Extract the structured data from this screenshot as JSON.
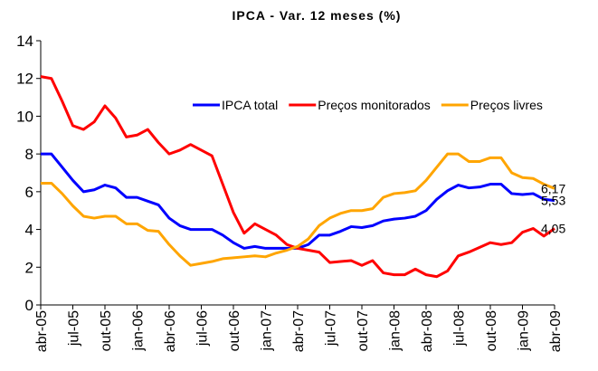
{
  "chart_data": {
    "type": "line",
    "title": "IPCA - Var. 12 meses (%)",
    "categories": [
      "abr-05",
      null,
      null,
      "jul-05",
      null,
      null,
      "out-05",
      null,
      null,
      "jan-06",
      null,
      null,
      "abr-06",
      null,
      null,
      "jul-06",
      null,
      null,
      "out-06",
      null,
      null,
      "jan-07",
      null,
      null,
      "abr-07",
      null,
      null,
      "jul-07",
      null,
      null,
      "out-07",
      null,
      null,
      "jan-08",
      null,
      null,
      "abr-08",
      null,
      null,
      "jul-08",
      null,
      null,
      "out-08",
      null,
      null,
      "jan-09",
      null,
      null,
      "abr-09"
    ],
    "series": [
      {
        "name": "IPCA total",
        "color": "#0000ff",
        "values": [
          8.0,
          8.0,
          7.3,
          6.6,
          6.0,
          6.1,
          6.35,
          6.2,
          5.7,
          5.7,
          5.5,
          5.3,
          4.6,
          4.2,
          4.0,
          4.0,
          4.0,
          3.7,
          3.3,
          3.0,
          3.1,
          3.0,
          3.0,
          3.0,
          3.0,
          3.2,
          3.7,
          3.7,
          3.9,
          4.15,
          4.1,
          4.2,
          4.45,
          4.55,
          4.6,
          4.7,
          5.0,
          5.6,
          6.05,
          6.35,
          6.2,
          6.25,
          6.4,
          6.4,
          5.9,
          5.85,
          5.9,
          5.6,
          5.53
        ],
        "value_labels": [
          null,
          null,
          null,
          null,
          null,
          null,
          null,
          null,
          null,
          null,
          null,
          null,
          null,
          null,
          null,
          null,
          null,
          null,
          null,
          null,
          null,
          null,
          null,
          null,
          null,
          null,
          null,
          null,
          null,
          null,
          null,
          null,
          null,
          null,
          null,
          null,
          null,
          null,
          null,
          null,
          null,
          null,
          null,
          null,
          null,
          null,
          null,
          null,
          "5,53"
        ]
      },
      {
        "name": "Preços monitorados",
        "color": "#ff0000",
        "values": [
          12.1,
          12.0,
          10.8,
          9.5,
          9.3,
          9.7,
          10.55,
          9.9,
          8.9,
          9.0,
          9.3,
          8.6,
          8.0,
          8.2,
          8.5,
          8.2,
          7.9,
          6.4,
          4.9,
          3.8,
          4.3,
          4.0,
          3.7,
          3.2,
          3.0,
          2.9,
          2.8,
          2.25,
          2.3,
          2.35,
          2.1,
          2.35,
          1.7,
          1.6,
          1.6,
          1.9,
          1.6,
          1.5,
          1.8,
          2.6,
          2.8,
          3.05,
          3.3,
          3.2,
          3.3,
          3.85,
          4.05,
          3.65,
          4.05
        ],
        "value_labels": [
          null,
          null,
          null,
          null,
          null,
          null,
          null,
          null,
          null,
          null,
          null,
          null,
          null,
          null,
          null,
          null,
          null,
          null,
          null,
          null,
          null,
          null,
          null,
          null,
          null,
          null,
          null,
          null,
          null,
          null,
          null,
          null,
          null,
          null,
          null,
          null,
          null,
          null,
          null,
          null,
          null,
          null,
          null,
          null,
          null,
          null,
          null,
          null,
          "4,05"
        ]
      },
      {
        "name": "Preços livres",
        "color": "#ffa500",
        "values": [
          6.45,
          6.45,
          5.9,
          5.25,
          4.7,
          4.6,
          4.7,
          4.7,
          4.3,
          4.3,
          3.95,
          3.9,
          3.2,
          2.6,
          2.1,
          2.2,
          2.3,
          2.45,
          2.5,
          2.55,
          2.6,
          2.55,
          2.75,
          2.9,
          3.1,
          3.5,
          4.2,
          4.6,
          4.85,
          5.0,
          5.0,
          5.1,
          5.7,
          5.9,
          5.95,
          6.05,
          6.6,
          7.3,
          8.0,
          8.0,
          7.6,
          7.6,
          7.8,
          7.8,
          7.0,
          6.75,
          6.7,
          6.4,
          6.17
        ],
        "value_labels": [
          null,
          null,
          null,
          null,
          null,
          null,
          null,
          null,
          null,
          null,
          null,
          null,
          null,
          null,
          null,
          null,
          null,
          null,
          null,
          null,
          null,
          null,
          null,
          null,
          null,
          null,
          null,
          null,
          null,
          null,
          null,
          null,
          null,
          null,
          null,
          null,
          null,
          null,
          null,
          null,
          null,
          null,
          null,
          null,
          null,
          null,
          null,
          null,
          "6,17"
        ]
      }
    ],
    "ylim": [
      0,
      14
    ],
    "yticks": [
      0,
      2,
      4,
      6,
      8,
      10,
      12,
      14
    ],
    "grid": false,
    "legend": "inside-top"
  }
}
